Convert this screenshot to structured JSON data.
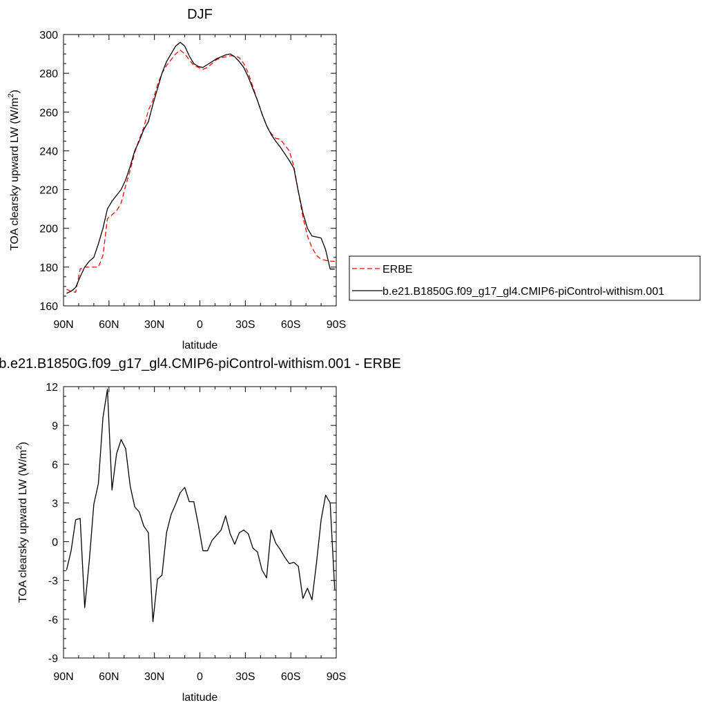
{
  "chart_data": [
    {
      "type": "line",
      "title": "DJF",
      "xlabel": "latitude",
      "ylabel": "TOA clearsky upward LW (W/m",
      "ylabel_sup": "2",
      "ylabel_close": ")",
      "xlim": [
        90,
        -90
      ],
      "ylim": [
        160,
        300
      ],
      "xticks": [
        90,
        60,
        30,
        0,
        -30,
        -60,
        -90
      ],
      "xticklabels": [
        "90N",
        "60N",
        "30N",
        "0",
        "30S",
        "60S",
        "90S"
      ],
      "yticks": [
        160,
        180,
        200,
        220,
        240,
        260,
        280,
        300
      ],
      "yticklabels": [
        "160",
        "180",
        "200",
        "220",
        "240",
        "260",
        "280",
        "300"
      ],
      "legend_position": "right",
      "series": [
        {
          "name": "ERBE",
          "color": "#ff0000",
          "dash": true,
          "x": [
            88,
            85,
            82,
            79,
            76,
            73,
            70,
            67,
            64,
            61,
            58,
            55,
            52,
            49,
            46,
            43,
            40,
            37,
            34,
            31,
            28,
            25,
            22,
            19,
            16,
            13,
            10,
            7,
            4,
            1,
            -2,
            -5,
            -8,
            -11,
            -14,
            -17,
            -20,
            -23,
            -26,
            -29,
            -32,
            -35,
            -38,
            -41,
            -44,
            -47,
            -50,
            -53,
            -56,
            -59,
            -62,
            -65,
            -68,
            -71,
            -74,
            -77,
            -80,
            -83,
            -86,
            -89
          ],
          "y": [
            168.5,
            167.5,
            167,
            179,
            180,
            180,
            180,
            180,
            186,
            205,
            207,
            209,
            213,
            222,
            230,
            239,
            246,
            252,
            261,
            266,
            274,
            280,
            284,
            287,
            290,
            292,
            290,
            287,
            284,
            283,
            282,
            283,
            285,
            287,
            288,
            288.5,
            289,
            289,
            288,
            285,
            280,
            273,
            266,
            259,
            253,
            249,
            246.5,
            246,
            243,
            240,
            232,
            219,
            206,
            196,
            190,
            186,
            184,
            183.5,
            183,
            183
          ]
        },
        {
          "name": "b.e21.B1850G.f09_g17_gl4.CMIP6-piControl-withism.001",
          "color": "#000000",
          "dash": false,
          "x": [
            88,
            85,
            82,
            79,
            76,
            73,
            70,
            67,
            64,
            61,
            58,
            55,
            52,
            49,
            46,
            43,
            40,
            37,
            34,
            31,
            28,
            25,
            22,
            19,
            16,
            13,
            10,
            7,
            4,
            1,
            -2,
            -5,
            -8,
            -11,
            -14,
            -17,
            -20,
            -23,
            -26,
            -29,
            -32,
            -35,
            -38,
            -41,
            -44,
            -47,
            -50,
            -53,
            -56,
            -59,
            -62,
            -65,
            -68,
            -71,
            -74,
            -77,
            -80,
            -83,
            -86,
            -89
          ],
          "y": [
            166.5,
            167.5,
            169.5,
            175,
            180,
            183,
            185,
            192,
            200,
            210,
            214,
            217,
            220,
            225,
            232,
            240,
            245,
            251,
            255,
            264,
            272,
            280,
            286,
            290,
            294,
            296,
            294,
            289,
            285,
            283.5,
            283,
            284.5,
            286,
            287.5,
            288.5,
            289.5,
            290,
            288.5,
            286,
            283,
            278,
            272,
            266,
            259,
            253,
            248.5,
            245,
            242,
            238.5,
            235,
            231,
            219,
            208,
            200,
            196,
            195.5,
            195,
            189,
            179,
            179
          ]
        }
      ]
    },
    {
      "type": "line",
      "title": "b.e21.B1850G.f09_g17_gl4.CMIP6-piControl-withism.001 - ERBE",
      "xlabel": "latitude",
      "ylabel": "TOA clearsky upward LW (W/m",
      "ylabel_sup": "2",
      "ylabel_close": ")",
      "xlim": [
        90,
        -90
      ],
      "ylim": [
        -9,
        12
      ],
      "xticks": [
        90,
        60,
        30,
        0,
        -30,
        -60,
        -90
      ],
      "xticklabels": [
        "90N",
        "60N",
        "30N",
        "0",
        "30S",
        "60S",
        "90S"
      ],
      "yticks": [
        -9,
        -6,
        -3,
        0,
        3,
        6,
        9,
        12
      ],
      "yticklabels": [
        "-9",
        "-6",
        "-3",
        "0",
        "3",
        "6",
        "9",
        "12"
      ],
      "series": [
        {
          "color": "#000000",
          "x": [
            88,
            85,
            82,
            79,
            76,
            73,
            70,
            67,
            64,
            61,
            58,
            55,
            52,
            49,
            46,
            43,
            40,
            37,
            34,
            31,
            28,
            25,
            22,
            19,
            16,
            13,
            10,
            7,
            4,
            1,
            -2,
            -5,
            -8,
            -11,
            -14,
            -17,
            -20,
            -23,
            -26,
            -29,
            -32,
            -35,
            -38,
            -41,
            -44,
            -47,
            -50,
            -53,
            -56,
            -59,
            -62,
            -65,
            -68,
            -71,
            -74,
            -77,
            -80,
            -83,
            -86,
            -89
          ],
          "y": [
            -2.2,
            -0.7,
            1.7,
            1.8,
            -5.1,
            -1.5,
            2.9,
            4.5,
            9.6,
            11.8,
            4.0,
            6.8,
            7.9,
            7.2,
            4.3,
            2.7,
            2.3,
            1.2,
            0.7,
            -6.2,
            -2.9,
            -2.6,
            0.7,
            2.1,
            2.9,
            3.8,
            4.2,
            3.1,
            3.1,
            1.3,
            -0.7,
            -0.7,
            0.1,
            0.5,
            0.9,
            2.0,
            0.6,
            -0.2,
            0.7,
            0.9,
            0.6,
            -0.5,
            -0.8,
            -2.2,
            -2.8,
            0.9,
            -0.1,
            -0.6,
            -1.2,
            -1.7,
            -1.6,
            -1.9,
            -4.4,
            -3.6,
            -4.5,
            -1.6,
            1.7,
            3.6,
            3.0,
            -3.7
          ]
        }
      ]
    }
  ]
}
